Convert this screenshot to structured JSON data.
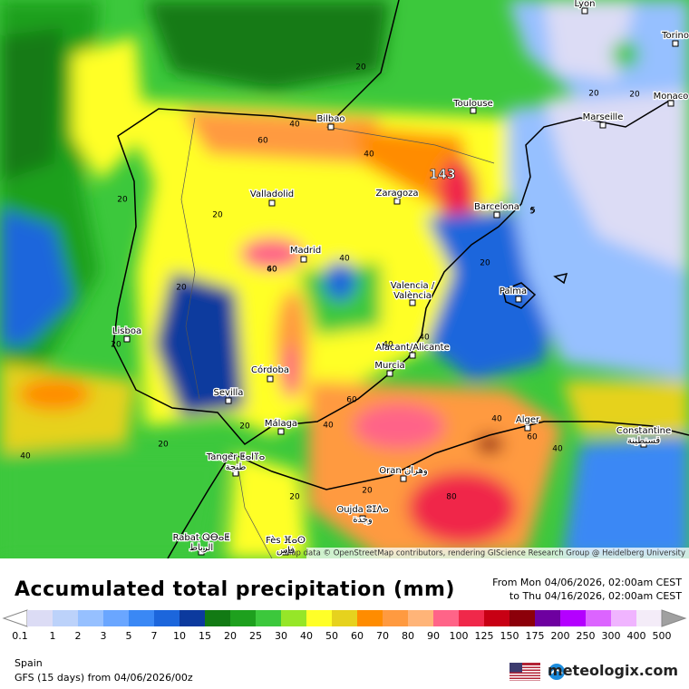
{
  "map": {
    "attribution": "Map data © OpenStreetMap contributors, rendering GIScience Research Group @ Heidelberg University",
    "max_label": "143",
    "cities": [
      {
        "lines": [
          "Lyon"
        ]
      },
      {
        "lines": [
          "Torino"
        ]
      },
      {
        "lines": [
          "Toulouse"
        ]
      },
      {
        "lines": [
          "Monaco"
        ]
      },
      {
        "lines": [
          "Marseille"
        ]
      },
      {
        "lines": [
          "Bilbao"
        ]
      },
      {
        "lines": [
          "Valladolid"
        ]
      },
      {
        "lines": [
          "Zaragoza"
        ]
      },
      {
        "lines": [
          "Barcelona"
        ]
      },
      {
        "lines": [
          "Madrid"
        ]
      },
      {
        "lines": [
          "Valencia /",
          "València"
        ]
      },
      {
        "lines": [
          "Palma"
        ]
      },
      {
        "lines": [
          "Lisboa"
        ]
      },
      {
        "lines": [
          "Alacant/Alicante"
        ]
      },
      {
        "lines": [
          "Murcia"
        ]
      },
      {
        "lines": [
          "Córdoba"
        ]
      },
      {
        "lines": [
          "Sevilla"
        ]
      },
      {
        "lines": [
          "Málaga"
        ]
      },
      {
        "lines": [
          "Alger"
        ]
      },
      {
        "lines": [
          "Constantine",
          "قسنطينة"
        ]
      },
      {
        "lines": [
          "Tanger ⵟⴰⵏⴶⴰ",
          "طنجة"
        ]
      },
      {
        "lines": [
          "Oran وهران"
        ]
      },
      {
        "lines": [
          "Oujda ⵓⵊⴷⴰ",
          "وجدة"
        ]
      },
      {
        "lines": [
          "Rabat ⵕⴱⴰⵟ",
          "الرباط"
        ]
      },
      {
        "lines": [
          "Fès ⴼⴰⵙ",
          "فاس"
        ]
      }
    ],
    "contour_labels": [
      20,
      40,
      60,
      40,
      20,
      20,
      40,
      20,
      40,
      60,
      20,
      20,
      40,
      20,
      5,
      20,
      40,
      60,
      40,
      20,
      40,
      80,
      20,
      40,
      60,
      20,
      20,
      5,
      40
    ]
  },
  "header": {
    "title": "Accumulated total precipitation (mm)",
    "from": "From Mon 04/06/2026, 02:00am CEST",
    "to": "to Thu 04/16/2026, 02:00am CEST"
  },
  "legend": {
    "levels": [
      0.1,
      1,
      2,
      3,
      5,
      7,
      10,
      15,
      20,
      25,
      30,
      40,
      50,
      60,
      70,
      80,
      90,
      100,
      125,
      150,
      175,
      200,
      250,
      300,
      400,
      500
    ],
    "colors": [
      "#ffffff",
      "#dcdcf5",
      "#bcd2fa",
      "#96c0ff",
      "#6aa6ff",
      "#3a88f5",
      "#1c66dc",
      "#0c3a9e",
      "#127a14",
      "#1ea01e",
      "#3cc83c",
      "#96e628",
      "#ffff28",
      "#e6d21e",
      "#ff8c00",
      "#ff9a40",
      "#ffb478",
      "#ff6488",
      "#f0284a",
      "#c80014",
      "#8c000a",
      "#6e00a0",
      "#b400ff",
      "#dc64ff",
      "#f0b4ff",
      "#f4ecf8",
      "#a0a0a0"
    ]
  },
  "footer": {
    "region": "Spain",
    "model": "GFS (15 days) from  04/06/2026/00z",
    "brand": "meteologix.com"
  }
}
